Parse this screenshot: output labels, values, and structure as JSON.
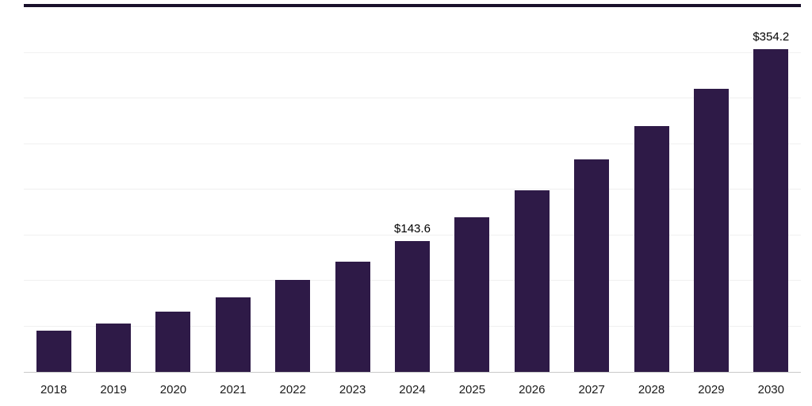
{
  "chart_data": {
    "type": "bar",
    "title": "",
    "categories": [
      "2018",
      "2019",
      "2020",
      "2021",
      "2022",
      "2023",
      "2024",
      "2025",
      "2026",
      "2027",
      "2028",
      "2029",
      "2030"
    ],
    "values": [
      45.2,
      52.9,
      65.7,
      81.9,
      100.7,
      121.2,
      143.6,
      169.9,
      199.0,
      233.2,
      269.7,
      310.7,
      354.2
    ],
    "point_labels": {
      "2024": "$143.6",
      "2030": "$354.2"
    },
    "xlabel": "",
    "ylabel": "",
    "ylim": [
      0,
      400
    ],
    "grid_step": 50,
    "grid": true,
    "legend": false,
    "colors": {
      "bar": "#2e1a47",
      "top_border": "#19102b",
      "gridline": "#f0f0f0",
      "axis_line": "#c9c9c9",
      "label_text": "#000000",
      "tick_text": "#1a1a1a",
      "background": "#ffffff"
    }
  }
}
